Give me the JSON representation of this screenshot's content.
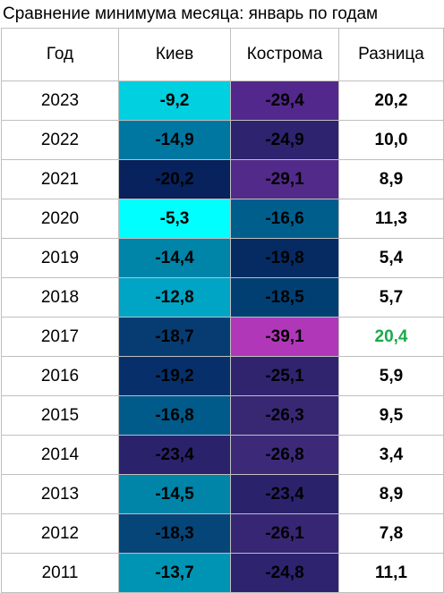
{
  "title": "Сравнение минимума месяца: январь по годам",
  "headers": [
    "Год",
    "Киев",
    "Кострома",
    "Разница"
  ],
  "rows": [
    {
      "year": "2023",
      "kyiv": "-9,2",
      "kyiv_bg": "#00d0e0",
      "kostroma": "-29,4",
      "kostroma_bg": "#53288c",
      "diff": "20,2",
      "diff_color": "#000000"
    },
    {
      "year": "2022",
      "kyiv": "-14,9",
      "kyiv_bg": "#0077a0",
      "kostroma": "-24,9",
      "kostroma_bg": "#2d236e",
      "diff": "10,0",
      "diff_color": "#000000"
    },
    {
      "year": "2021",
      "kyiv": "-20,2",
      "kyiv_bg": "#07225c",
      "kostroma": "-29,1",
      "kostroma_bg": "#522a8a",
      "diff": "8,9",
      "diff_color": "#000000"
    },
    {
      "year": "2020",
      "kyiv": "-5,3",
      "kyiv_bg": "#00ffff",
      "kostroma": "-16,6",
      "kostroma_bg": "#005e8c",
      "diff": "11,3",
      "diff_color": "#000000"
    },
    {
      "year": "2019",
      "kyiv": "-14,4",
      "kyiv_bg": "#0084a8",
      "kostroma": "-19,8",
      "kostroma_bg": "#062b62",
      "diff": "5,4",
      "diff_color": "#000000"
    },
    {
      "year": "2018",
      "kyiv": "-12,8",
      "kyiv_bg": "#00a4c4",
      "kostroma": "-18,5",
      "kostroma_bg": "#013f72",
      "diff": "5,7",
      "diff_color": "#000000"
    },
    {
      "year": "2017",
      "kyiv": "-18,7",
      "kyiv_bg": "#073c72",
      "kostroma": "-39,1",
      "kostroma_bg": "#b038b8",
      "diff": "20,4",
      "diff_color": "#1aaa4a"
    },
    {
      "year": "2016",
      "kyiv": "-19,2",
      "kyiv_bg": "#07306a",
      "kostroma": "-25,1",
      "kostroma_bg": "#30246e",
      "diff": "5,9",
      "diff_color": "#000000"
    },
    {
      "year": "2015",
      "kyiv": "-16,8",
      "kyiv_bg": "#005a8a",
      "kostroma": "-26,3",
      "kostroma_bg": "#382874",
      "diff": "9,5",
      "diff_color": "#000000"
    },
    {
      "year": "2014",
      "kyiv": "-23,4",
      "kyiv_bg": "#2a236c",
      "kostroma": "-26,8",
      "kostroma_bg": "#3c2a78",
      "diff": "3,4",
      "diff_color": "#000000"
    },
    {
      "year": "2013",
      "kyiv": "-14,5",
      "kyiv_bg": "#0084a8",
      "kostroma": "-23,4",
      "kostroma_bg": "#2a236c",
      "diff": "8,9",
      "diff_color": "#000000"
    },
    {
      "year": "2012",
      "kyiv": "-18,3",
      "kyiv_bg": "#064578",
      "kostroma": "-26,1",
      "kostroma_bg": "#372674",
      "diff": "7,8",
      "diff_color": "#000000"
    },
    {
      "year": "2011",
      "kyiv": "-13,7",
      "kyiv_bg": "#0094b4",
      "kostroma": "-24,8",
      "kostroma_bg": "#2d236e",
      "diff": "11,1",
      "diff_color": "#000000"
    }
  ]
}
